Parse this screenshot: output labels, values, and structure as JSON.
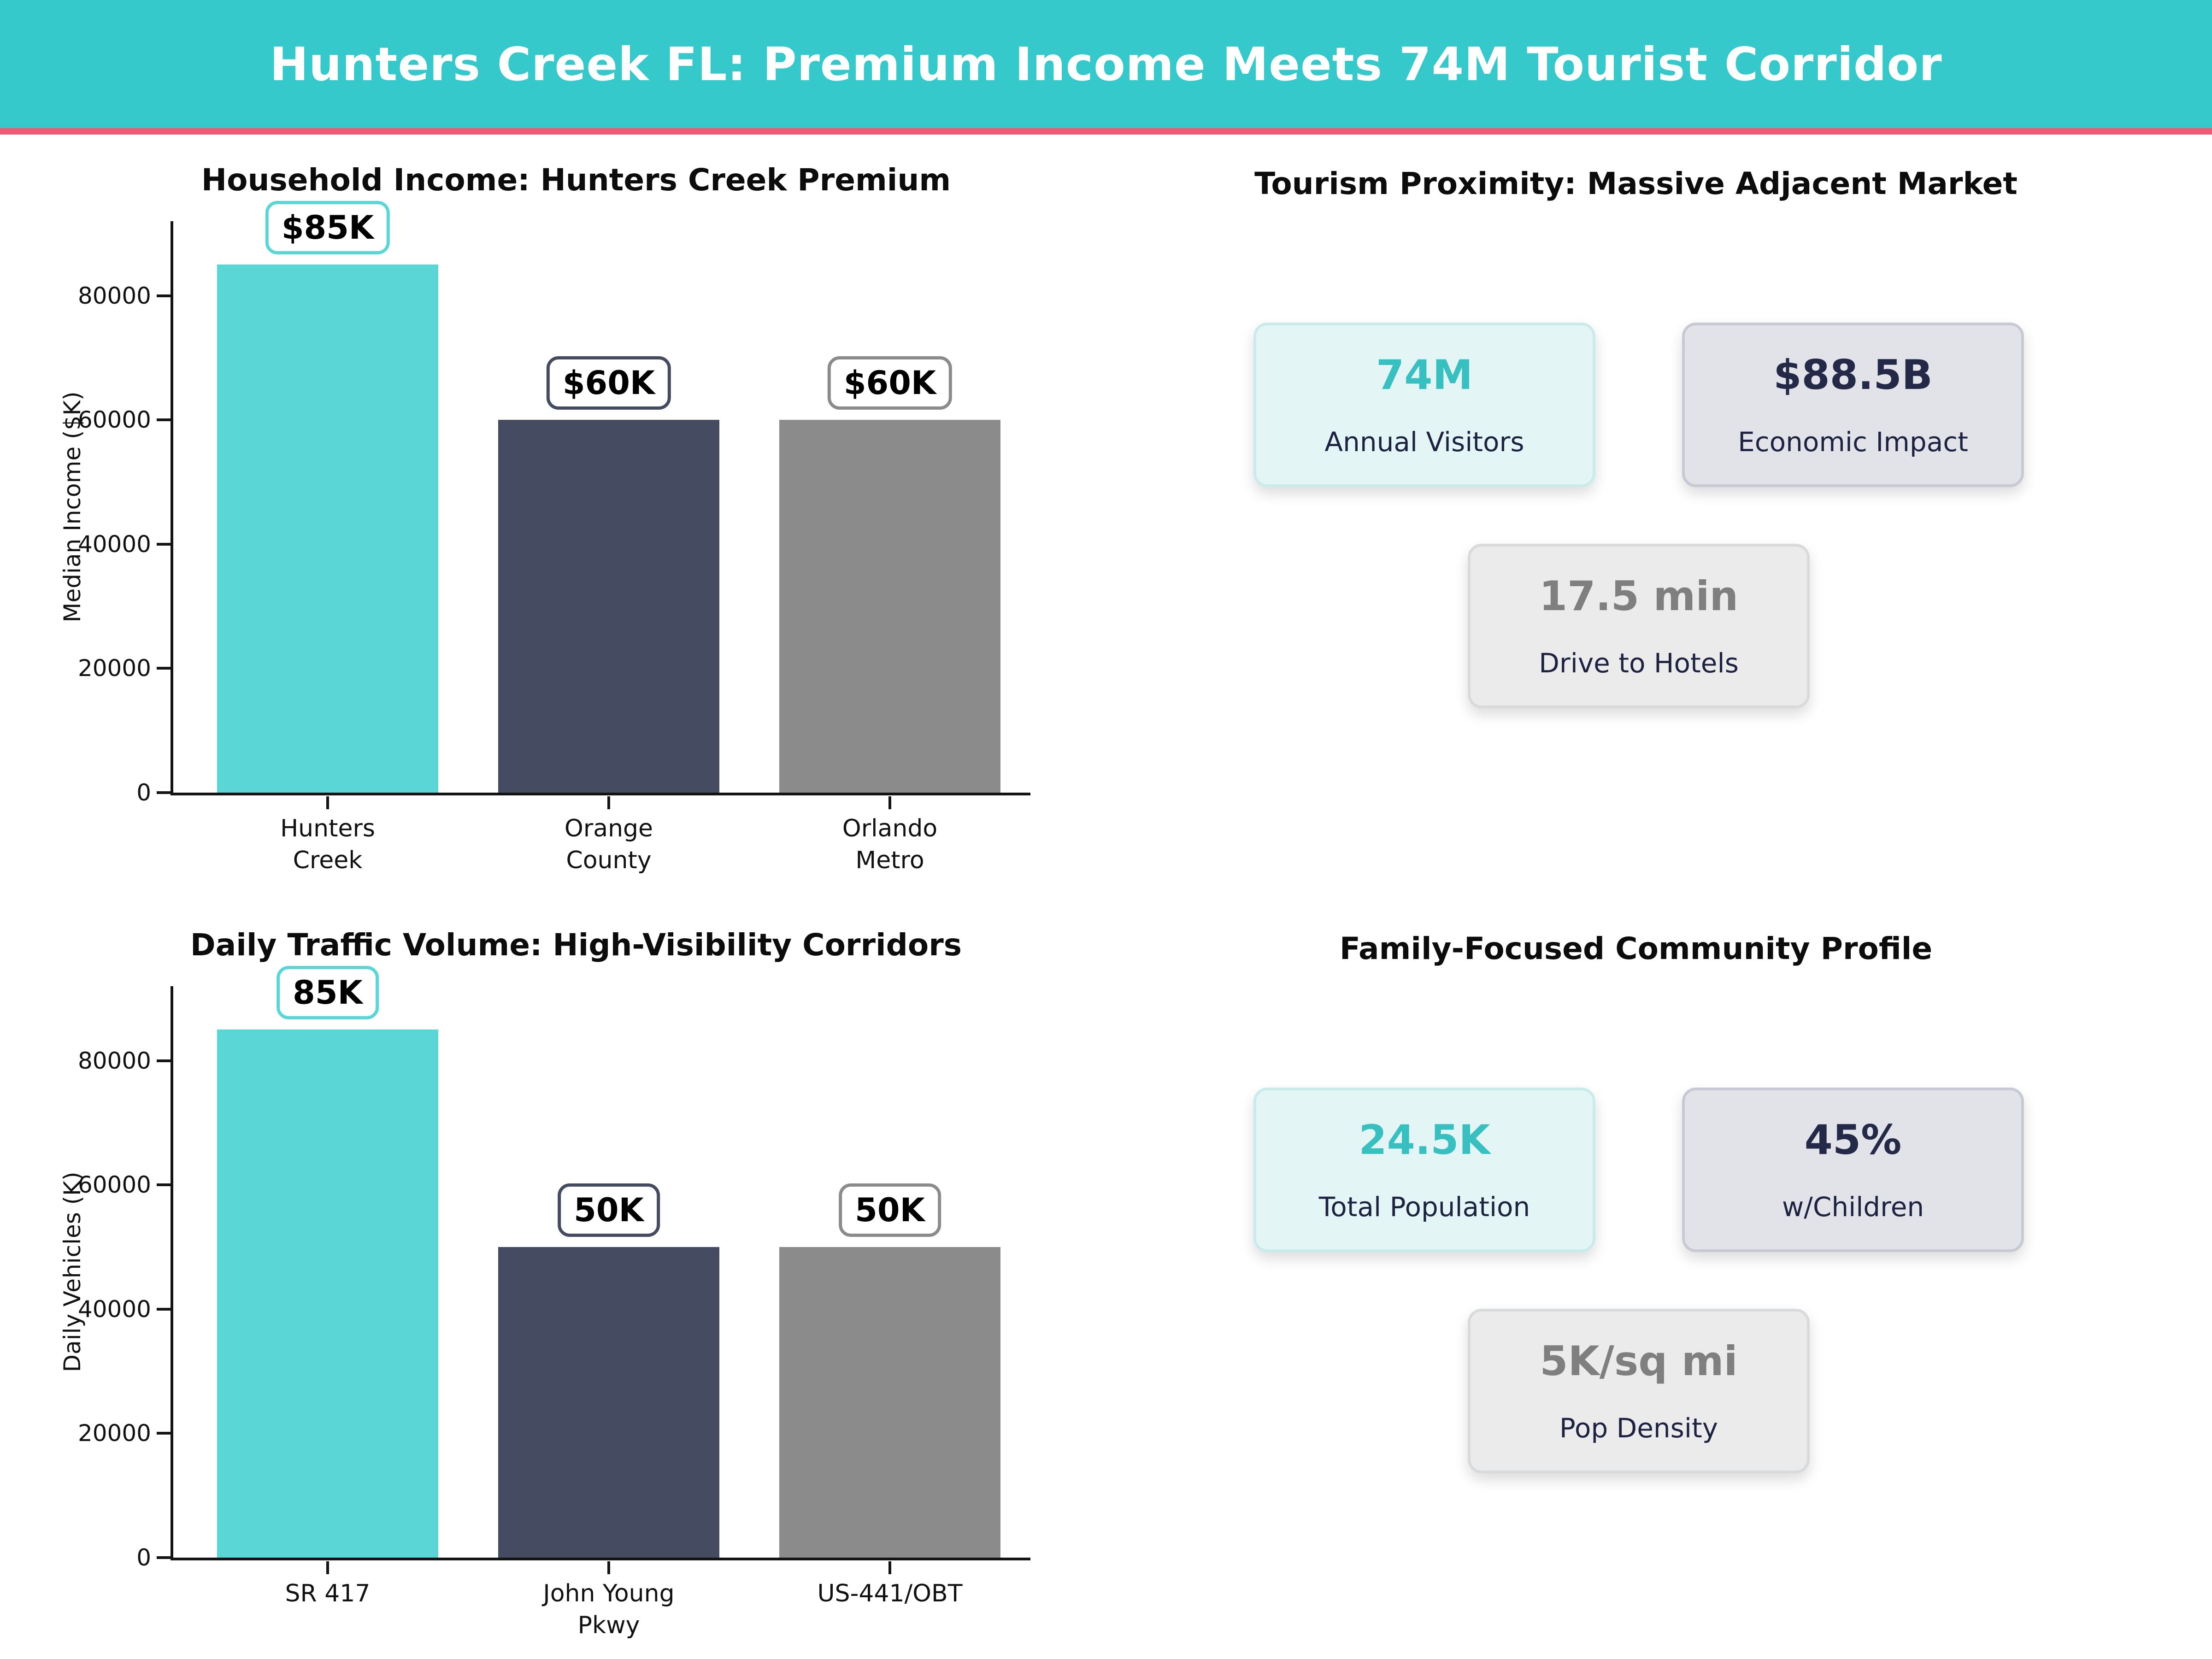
{
  "header": {
    "title": "Hunters Creek FL: Premium Income Meets 74M Tourist Corridor",
    "background": "#36c9cc",
    "divider_color": "#ed5c74"
  },
  "chart_data": [
    {
      "type": "bar",
      "title": "Household Income: Hunters Creek Premium",
      "xlabel": "",
      "ylabel": "Median Income ($K)",
      "categories": [
        "Hunters Creek",
        "Orange County",
        "Orlando Metro"
      ],
      "category_lines": [
        [
          "Hunters",
          "Creek"
        ],
        [
          "Orange",
          "County"
        ],
        [
          "Orlando",
          "Metro"
        ]
      ],
      "values": [
        85000,
        60000,
        60000
      ],
      "bar_labels": [
        "$85K",
        "$60K",
        "$60K"
      ],
      "bar_colors": [
        "#5bd6d6",
        "#454b60",
        "#8b8b8b"
      ],
      "yticks": [
        0,
        20000,
        40000,
        60000,
        80000
      ],
      "ylim": [
        0,
        92000
      ],
      "grid": false,
      "legend": null
    },
    {
      "type": "bar",
      "title": "Daily Traffic Volume: High-Visibility Corridors",
      "xlabel": "",
      "ylabel": "Daily Vehicles (K)",
      "categories": [
        "SR 417",
        "John Young Pkwy",
        "US-441/OBT"
      ],
      "category_lines": [
        [
          "SR 417"
        ],
        [
          "John Young",
          "Pkwy"
        ],
        [
          "US-441/OBT"
        ]
      ],
      "values": [
        85000,
        50000,
        50000
      ],
      "bar_labels": [
        "85K",
        "50K",
        "50K"
      ],
      "bar_colors": [
        "#5bd6d6",
        "#454b60",
        "#8b8b8b"
      ],
      "yticks": [
        0,
        20000,
        40000,
        60000,
        80000
      ],
      "ylim": [
        0,
        92000
      ],
      "grid": false,
      "legend": null
    }
  ],
  "sections": [
    {
      "title": "Tourism Proximity: Massive Adjacent Market",
      "cards": [
        {
          "value": "74M",
          "label": "Annual Visitors",
          "theme": "teal"
        },
        {
          "value": "$88.5B",
          "label": "Economic Impact",
          "theme": "navy"
        },
        {
          "value": "17.5 min",
          "label": "Drive to Hotels",
          "theme": "gray"
        }
      ]
    },
    {
      "title": "Family-Focused Community Profile",
      "cards": [
        {
          "value": "24.5K",
          "label": "Total Population",
          "theme": "teal"
        },
        {
          "value": "45%",
          "label": "w/Children",
          "theme": "navy"
        },
        {
          "value": "5K/sq mi",
          "label": "Pop Density",
          "theme": "gray"
        }
      ]
    }
  ],
  "card_themes": {
    "teal": {
      "bg": "#e3f6f5",
      "border": "#c9ecea",
      "value_color": "#38bfc0"
    },
    "navy": {
      "bg": "#e2e3e9",
      "border": "#c7cad4",
      "value_color": "#232946"
    },
    "gray": {
      "bg": "#ebebec",
      "border": "#d9dadb",
      "value_color": "#7f7f7f"
    }
  },
  "card_label_color": "#1c2240",
  "axis_color": "#141414"
}
